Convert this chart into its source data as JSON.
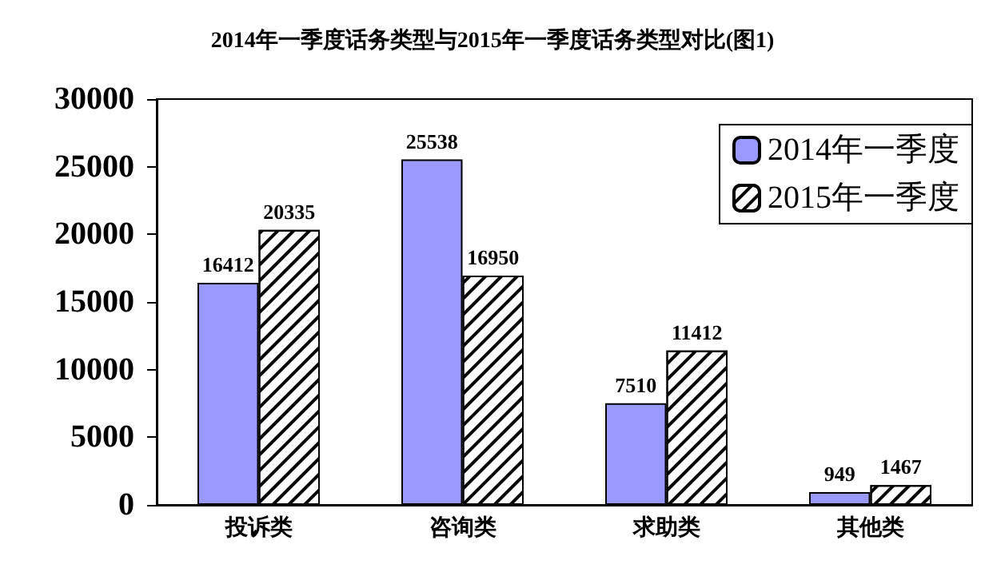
{
  "chart_data": {
    "type": "bar",
    "title": "2014年一季度话务类型与2015年一季度话务类型对比(图1)",
    "categories": [
      "投诉类",
      "咨询类",
      "求助类",
      "其他类"
    ],
    "series": [
      {
        "name": "2014年一季度",
        "color": "#9999ff",
        "values": [
          16412,
          25538,
          7510,
          949
        ]
      },
      {
        "name": "2015年一季度",
        "color": "#000000",
        "values": [
          20335,
          16950,
          11412,
          1467
        ]
      }
    ],
    "ylim": [
      0,
      30000
    ],
    "yticks": [
      0,
      5000,
      10000,
      15000,
      20000,
      25000,
      30000
    ],
    "data_labels": true,
    "grid": false,
    "legend": "top right"
  }
}
